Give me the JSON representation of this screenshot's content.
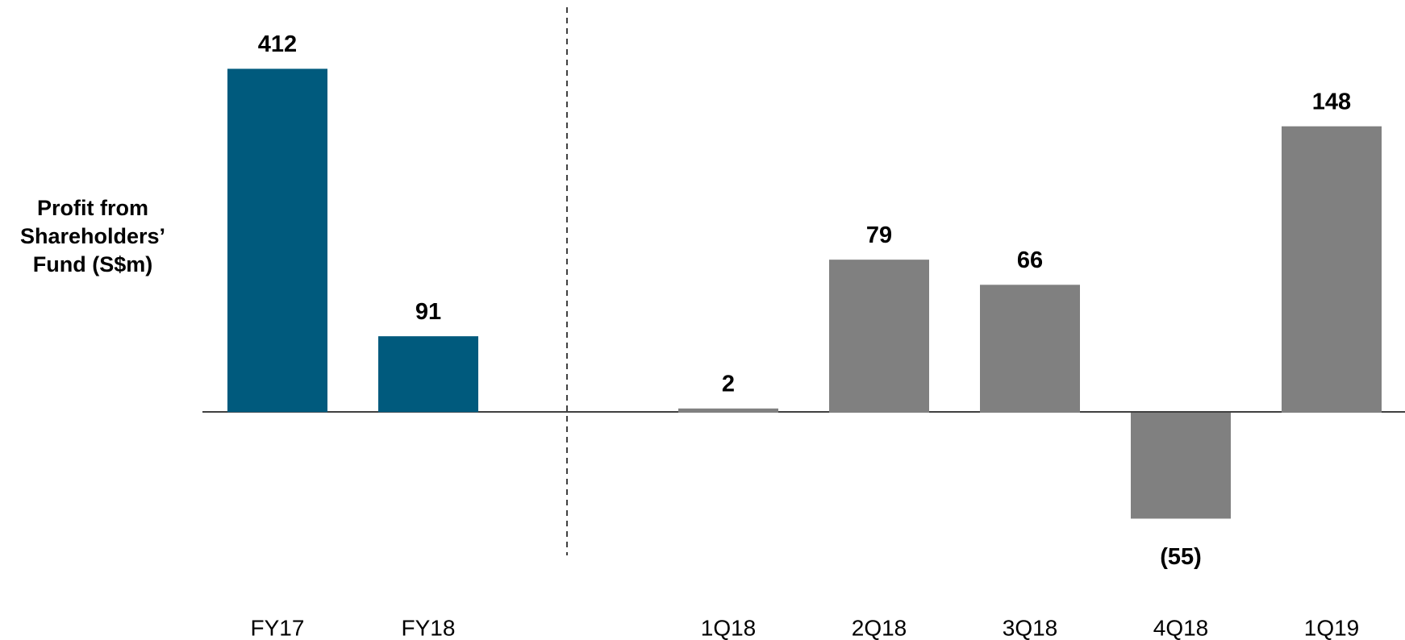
{
  "y_label": [
    "Profit from",
    "Shareholders’",
    "Fund (S$m)"
  ],
  "chart_data": [
    {
      "type": "bar",
      "categories": [
        "FY17",
        "FY18"
      ],
      "values": [
        412,
        91
      ],
      "color": "#005a7d",
      "ylim": [
        -172,
        452
      ]
    },
    {
      "type": "bar",
      "categories": [
        "1Q18",
        "2Q18",
        "3Q18",
        "4Q18",
        "1Q19"
      ],
      "values": [
        2,
        79,
        66,
        -55,
        148
      ],
      "value_labels": [
        "2",
        "79",
        "66",
        "(55)",
        "148"
      ],
      "color": "#808080",
      "ylim": [
        -74,
        195
      ]
    }
  ]
}
